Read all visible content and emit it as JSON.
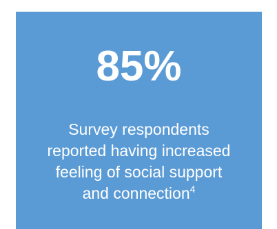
{
  "stat": {
    "value": "85%"
  },
  "caption": {
    "line1": "Survey respondents",
    "line2": "reported having increased",
    "line3": "feeling of social support",
    "line4": "and connection",
    "footnote": "4"
  },
  "colors": {
    "card_background": "#5b9bd5",
    "text": "#ffffff"
  }
}
